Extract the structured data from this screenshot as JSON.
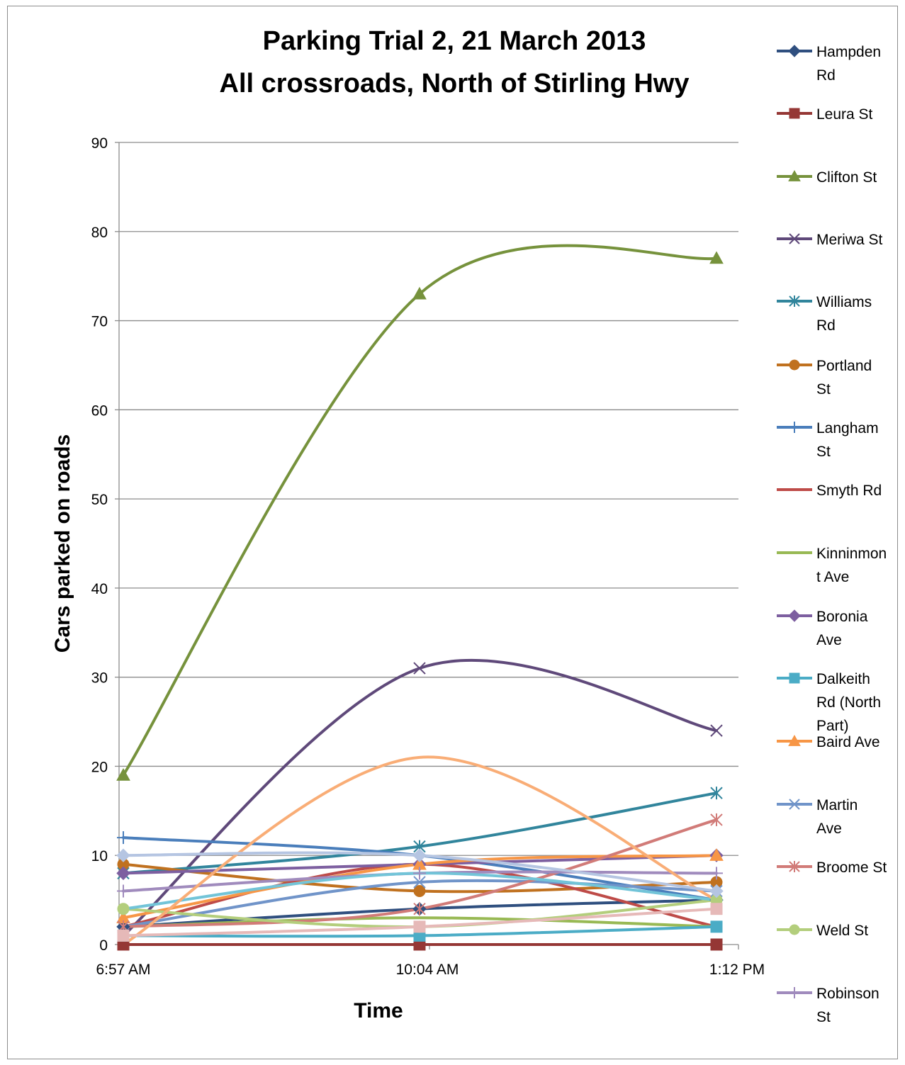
{
  "chart_data": {
    "type": "line",
    "title_lines": [
      "Parking Trial 2, 21 March 2013",
      "All crossroads, North of Stirling Hwy"
    ],
    "xlabel": "Time",
    "ylabel": "Cars parked on roads",
    "categories": [
      "6:57 AM",
      "10:04 AM",
      "1:12 PM"
    ],
    "ylim": [
      0,
      90
    ],
    "yticks": [
      0,
      10,
      20,
      30,
      40,
      50,
      60,
      70,
      80,
      90
    ],
    "grid": "horizontal",
    "smoothed": true,
    "legend_position": "right",
    "series": [
      {
        "name": "Hampden Rd",
        "legend_lines": [
          "Hampden",
          "Rd"
        ],
        "color": "#2f4f7f",
        "marker": "diamond",
        "values": [
          2,
          4,
          5
        ]
      },
      {
        "name": "Leura St",
        "legend_lines": [
          "Leura St"
        ],
        "color": "#953735",
        "marker": "square",
        "values": [
          0,
          0,
          0
        ]
      },
      {
        "name": "Clifton St",
        "legend_lines": [
          "Clifton St"
        ],
        "color": "#76923c",
        "marker": "triangle",
        "values": [
          19,
          73,
          77
        ]
      },
      {
        "name": "Meriwa St",
        "legend_lines": [
          "Meriwa St"
        ],
        "color": "#5f497a",
        "marker": "x",
        "values": [
          1,
          31,
          24
        ]
      },
      {
        "name": "Williams Rd",
        "legend_lines": [
          "Williams",
          "Rd"
        ],
        "color": "#31859c",
        "marker": "asterisk",
        "values": [
          8,
          11,
          17
        ]
      },
      {
        "name": "Portland St",
        "legend_lines": [
          "Portland",
          "St"
        ],
        "color": "#c0711f",
        "marker": "circle",
        "values": [
          9,
          6,
          7
        ]
      },
      {
        "name": "Langham St",
        "legend_lines": [
          "Langham",
          "St"
        ],
        "color": "#4a7ebb",
        "marker": "plus",
        "values": [
          12,
          10,
          5
        ]
      },
      {
        "name": "Smyth Rd",
        "legend_lines": [
          "Smyth Rd"
        ],
        "color": "#be4b48",
        "marker": "none",
        "values": [
          2,
          9,
          2
        ]
      },
      {
        "name": "Kinninmont Ave",
        "legend_lines": [
          "Kinninmon",
          "t Ave"
        ],
        "color": "#98b954",
        "marker": "none",
        "values": [
          2,
          3,
          2
        ]
      },
      {
        "name": "Boronia Ave",
        "legend_lines": [
          "Boronia",
          "Ave"
        ],
        "color": "#7d5fa0",
        "marker": "diamond",
        "values": [
          8,
          9,
          10
        ]
      },
      {
        "name": "Dalkeith Rd (North Part)",
        "legend_lines": [
          "Dalkeith",
          "Rd (North",
          "Part)"
        ],
        "color": "#4bacc6",
        "marker": "square",
        "values": [
          1,
          1,
          2
        ]
      },
      {
        "name": "Baird Ave",
        "legend_lines": [
          "Baird Ave"
        ],
        "color": "#f79646",
        "marker": "triangle",
        "values": [
          3,
          9,
          10
        ]
      },
      {
        "name": "Martin Ave",
        "legend_lines": [
          "Martin",
          "Ave"
        ],
        "color": "#7094c9",
        "marker": "x",
        "values": [
          2,
          7,
          6
        ]
      },
      {
        "name": "Broome St",
        "legend_lines": [
          "Broome St"
        ],
        "color": "#d17b78",
        "marker": "asterisk",
        "values": [
          2,
          4,
          14
        ]
      },
      {
        "name": "Weld St",
        "legend_lines": [
          "Weld St"
        ],
        "color": "#b3ce7c",
        "marker": "circle",
        "values": [
          4,
          2,
          5
        ]
      },
      {
        "name": "Robinson St",
        "legend_lines": [
          "Robinson",
          "St"
        ],
        "color": "#a08bbd",
        "marker": "plus",
        "values": [
          6,
          8,
          8
        ]
      },
      {
        "name": "",
        "legend_lines": [],
        "color": "#72c4d8",
        "marker": "none",
        "values": [
          4,
          8,
          5
        ]
      },
      {
        "name": "",
        "legend_lines": [],
        "color": "#f9ad76",
        "marker": "none",
        "values": [
          0,
          21,
          5
        ]
      },
      {
        "name": "",
        "legend_lines": [],
        "color": "#b5c5e2",
        "marker": "diamond",
        "values": [
          10,
          10,
          6
        ]
      },
      {
        "name": "",
        "legend_lines": [],
        "color": "#e6b9b8",
        "marker": "square",
        "values": [
          1,
          2,
          4
        ]
      }
    ]
  }
}
